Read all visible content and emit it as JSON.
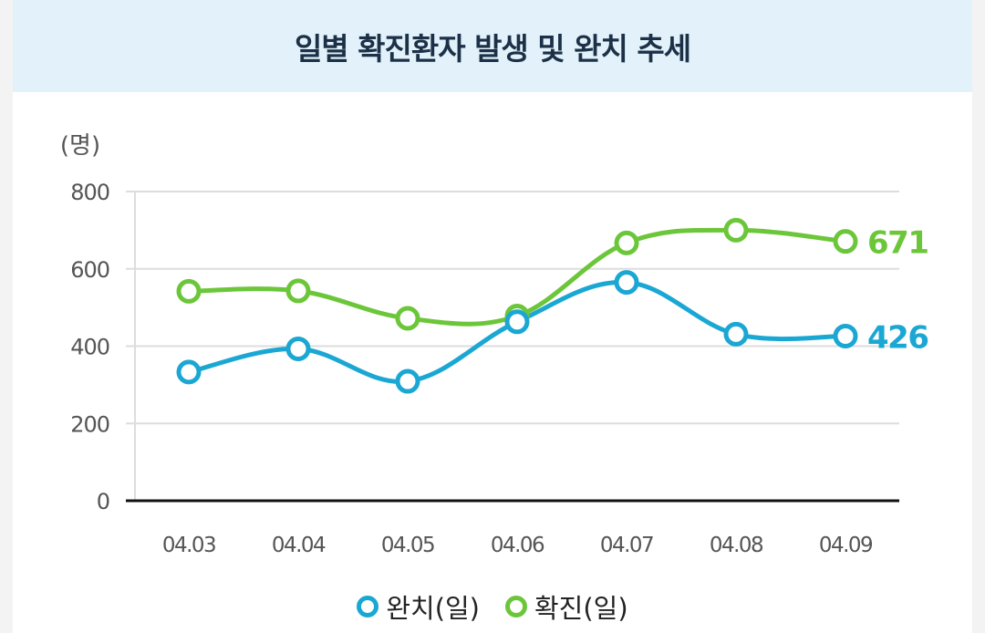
{
  "header": {
    "title": "일별 확진환자 발생 및 완치 추세"
  },
  "colors": {
    "recovered": "#1ba7d3",
    "confirmed": "#6cc63a",
    "grid": "#dddddd",
    "axis": "#111111",
    "tick_text": "#555555"
  },
  "chart_data": {
    "type": "line",
    "title": "일별 확진환자 발생 및 완치 추세",
    "unit_label": "(명)",
    "xlabel": "",
    "ylabel": "(명)",
    "ylim": [
      0,
      800
    ],
    "y_ticks": [
      "0",
      "200",
      "400",
      "600",
      "800"
    ],
    "y_tick_values": [
      0,
      200,
      400,
      600,
      800
    ],
    "categories": [
      "04.03",
      "04.04",
      "04.05",
      "04.06",
      "04.07",
      "04.08",
      "04.09"
    ],
    "series": [
      {
        "name": "완치(일)",
        "key": "recovered",
        "values": [
          333,
          393,
          309,
          463,
          565,
          431,
          426
        ],
        "end_label": "426"
      },
      {
        "name": "확진(일)",
        "key": "confirmed",
        "values": [
          542,
          543,
          472,
          478,
          667,
          700,
          671
        ],
        "end_label": "671"
      }
    ],
    "grid": true,
    "legend": "bottom"
  },
  "legend": {
    "items": [
      {
        "label": "완치(일)",
        "key": "recovered"
      },
      {
        "label": "확진(일)",
        "key": "confirmed"
      }
    ]
  }
}
